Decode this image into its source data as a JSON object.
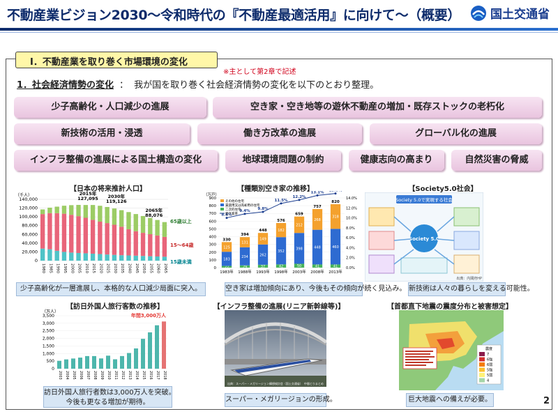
{
  "header": {
    "title": "不動産業ビジョン2030～令和時代の『不動産最適活用』に向けて～（概要）",
    "logo_text": "国土交通省",
    "logo_icon": "mlit-logo-icon"
  },
  "section": {
    "tab_label": "Ⅰ．不動産業を取り巻く市場環境の変化",
    "note": "※主として第2章で記述",
    "subhead_key": "1．社会経済情勢の変化",
    "subhead_colon": "：",
    "subhead_text": "我が国を取り巻く社会経済情勢の変化を以下のとおり整理。"
  },
  "trends": [
    "少子高齢化・人口減少の進展",
    "空き家・空き地等の遊休不動産の増加・既存ストックの老朽化",
    "新技術の活用・浸透",
    "働き方改革の進展",
    "グローバル化の進展",
    "インフラ整備の進展による国土構造の変化",
    "地球環境問題の制約",
    "健康志向の高まり",
    "自然災害の脅威"
  ],
  "panels": {
    "population": {
      "title": "【日本の将来推計人口】",
      "caption": "少子高齢化が一層進展し、本格的な人口減少局面に突入。",
      "unit": "（千人）",
      "callouts": [
        "2015年\n127,095",
        "2030年\n119,126",
        "2065年\n88,076"
      ],
      "legend": [
        "65歳以上",
        "15～64歳",
        "15歳未満"
      ]
    },
    "akiya": {
      "title": "【種類別空き家の推移】",
      "caption": "空き家は増加傾向にあり、今後もその傾向が続く見込み。",
      "unit": "（万戸）",
      "legend": [
        "その他の住宅",
        "賃貸用又は売却用の住宅",
        "二次的住宅",
        "空き家率"
      ]
    },
    "society5": {
      "title": "【Society5.0社会】",
      "caption": "新技術は人々の暮らしを変える可能性。",
      "inner_title": "Society 5.0で実現する社会",
      "center_label": "Society 5.0",
      "source": "出典：内閣府HP"
    },
    "visitors": {
      "title": "【訪日外国人旅行客数の推移】",
      "caption_lines": [
        "訪日外国人旅行者数は3,000万人を突破。",
        "今後も更なる増加が期待。"
      ],
      "unit": "（万人）",
      "highlight": "年間3,000万人"
    },
    "maglev": {
      "title": "【インフラ整備の進展(リニア新幹線等)】",
      "caption": "スーパー・メガリージョンの形成。",
      "source": "出典：スーパー・メガリージョン構想検討会（国土交通省）　中間とりまとめ"
    },
    "quake": {
      "title": "【首都直下地震の震度分布と被害想定】",
      "caption": "巨大地震への備えが必要。",
      "scale_title": "震度",
      "scale": [
        "7",
        "6強",
        "6弱",
        "5強",
        "5弱",
        "4"
      ]
    }
  },
  "chart_data": [
    {
      "type": "bar",
      "title": "【日本の将来推計人口】",
      "categories": [
        "1980",
        "1985",
        "1990",
        "1995",
        "2000",
        "2005",
        "2010",
        "2015",
        "2020",
        "2025",
        "2030",
        "2035",
        "2040",
        "2045",
        "2050",
        "2055",
        "2060",
        "2065"
      ],
      "series": [
        {
          "name": "15歳未満",
          "values": [
            27507,
            26033,
            22486,
            20014,
            18472,
            17521,
            16803,
            15945,
            15075,
            14073,
            13212,
            12457,
            11936,
            11384,
            10767,
            10123,
            9508,
            8975
          ]
        },
        {
          "name": "15～64歳",
          "values": [
            78835,
            82506,
            85904,
            87165,
            86220,
            84092,
            81032,
            77282,
            74058,
            71701,
            68754,
            65003,
            59777,
            55845,
            52750,
            50276,
            47928,
            45291
          ]
        },
        {
          "name": "65歳以上",
          "values": [
            10647,
            12468,
            14895,
            18261,
            22005,
            25672,
            29246,
            33868,
            36192,
            36771,
            37160,
            37817,
            39206,
            39192,
            38406,
            37042,
            35403,
            33810
          ]
        }
      ],
      "ylim": [
        0,
        140000
      ],
      "yticks": [
        0,
        20000,
        40000,
        60000,
        80000,
        100000,
        120000,
        140000
      ],
      "ylabel": "（千人）"
    },
    {
      "type": "bar",
      "title": "【種類別空き家の推移】",
      "categories": [
        "1983年",
        "1988年",
        "1993年",
        "1998年",
        "2003年",
        "2008年",
        "2013年"
      ],
      "series": [
        {
          "name": "その他の住宅",
          "values": [
            125,
            131,
            149,
            182,
            212,
            268,
            318
          ]
        },
        {
          "name": "賃貸用又は売却用の住宅",
          "values": [
            183,
            234,
            262,
            352,
            398,
            448,
            460
          ]
        },
        {
          "name": "二次的住宅",
          "values": [
            22,
            29,
            37,
            42,
            50,
            41,
            41
          ]
        },
        {
          "name": "空き家率",
          "values": [
            8.6,
            9.4,
            9.8,
            11.5,
            12.2,
            13.1,
            13.5
          ]
        }
      ],
      "totals": [
        330,
        394,
        448,
        576,
        659,
        757,
        820
      ],
      "ylim": [
        0,
        900
      ],
      "yticks": [
        0,
        100,
        200,
        300,
        400,
        500,
        600,
        700,
        800,
        900
      ],
      "y2lim": [
        0,
        14
      ],
      "y2ticks": [
        "0.0%",
        "2.0%",
        "4.0%",
        "6.0%",
        "8.0%",
        "10.0%",
        "12.0%",
        "14.0%"
      ],
      "ylabel": "（万戸）"
    },
    {
      "type": "bar",
      "title": "【訪日外国人旅行客数の推移】",
      "categories": [
        "2003",
        "2004",
        "2005",
        "2006",
        "2007",
        "2008",
        "2009",
        "2010",
        "2011",
        "2012",
        "2013",
        "2014",
        "2015",
        "2016",
        "2017",
        "2018"
      ],
      "values": [
        521,
        614,
        673,
        733,
        835,
        835,
        679,
        861,
        622,
        836,
        1036,
        1341,
        1974,
        2404,
        2869,
        3119
      ],
      "ylim": [
        0,
        3500
      ],
      "yticks": [
        0,
        500,
        1000,
        1500,
        2000,
        2500,
        3000,
        3500
      ],
      "ylabel": "（万人）"
    }
  ],
  "page_number": "2",
  "colors": {
    "title": "#0d2b6b",
    "pill": "#ebc9e2",
    "tab": "#fff7a8",
    "caption": "#d7e6f5",
    "pop_65": "#9ccc65",
    "pop_15_64": "#e8657a",
    "pop_0_14": "#4fc3c7",
    "akiya_other": "#f4a12d",
    "akiya_rent": "#2e6bd1",
    "akiya_second": "#47b35b",
    "visitors": "#4db6ac"
  }
}
